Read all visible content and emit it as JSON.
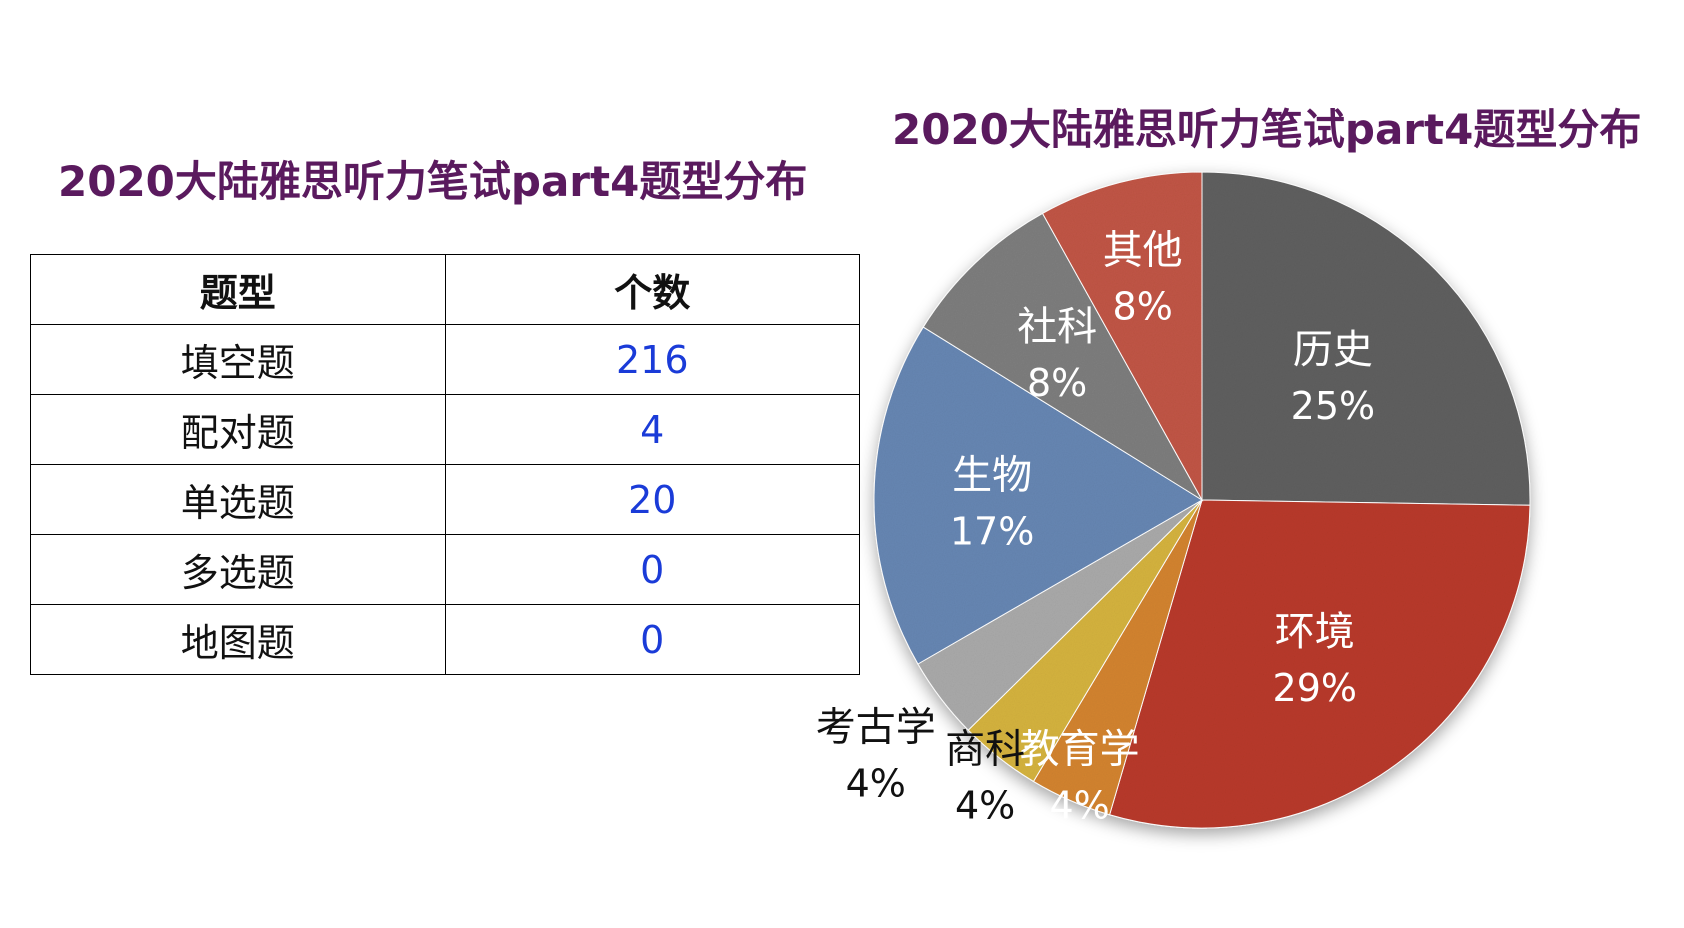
{
  "table": {
    "title": "2020大陆雅思听力笔试part4题型分布",
    "headers": [
      "题型",
      "个数"
    ],
    "rows": [
      {
        "type": "填空题",
        "count": "216"
      },
      {
        "type": "配对题",
        "count": "4"
      },
      {
        "type": "单选题",
        "count": "20"
      },
      {
        "type": "多选题",
        "count": "0"
      },
      {
        "type": "地图题",
        "count": "0"
      }
    ]
  },
  "chart_data": {
    "type": "pie",
    "title": "2020大陆雅思听力笔试part4题型分布",
    "start": "12 o'clock, clockwise",
    "slices": [
      {
        "label": "历史",
        "value": 25,
        "value_label": "25%",
        "color": "#5f5f5f",
        "label_color": "#ffffff"
      },
      {
        "label": "环境",
        "value": 29,
        "value_label": "29%",
        "color": "#b8392a",
        "label_color": "#ffffff"
      },
      {
        "label": "教育学",
        "value": 4,
        "value_label": "4%",
        "color": "#d2832f",
        "label_color": "#ffffff"
      },
      {
        "label": "商科",
        "value": 4,
        "value_label": "4%",
        "color": "#d4b23e",
        "label_color": "#111111"
      },
      {
        "label": "考古学",
        "value": 4,
        "value_label": "4%",
        "color": "#a9a9a9",
        "label_color": "#111111"
      },
      {
        "label": "生物",
        "value": 17,
        "value_label": "17%",
        "color": "#6686b2",
        "label_color": "#ffffff"
      },
      {
        "label": "社科",
        "value": 8,
        "value_label": "8%",
        "color": "#7d7d7d",
        "label_color": "#ffffff"
      },
      {
        "label": "其他",
        "value": 8,
        "value_label": "8%",
        "color": "#c05545",
        "label_color": "#ffffff"
      }
    ]
  }
}
